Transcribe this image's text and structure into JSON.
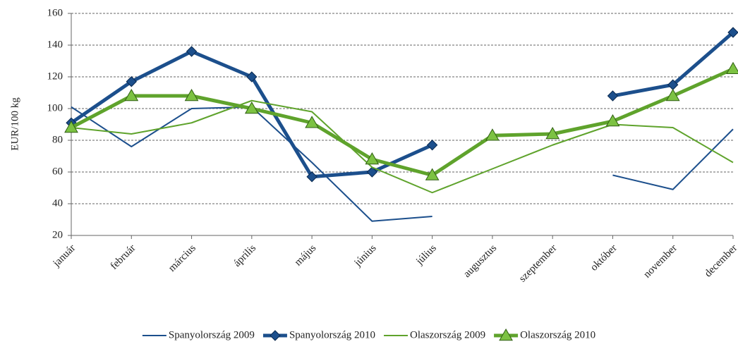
{
  "chart_data": {
    "type": "line",
    "y_label": "EUR/100 kg",
    "categories": [
      "január",
      "február",
      "március",
      "április",
      "május",
      "június",
      "július",
      "augusztus",
      "szeptember",
      "október",
      "november",
      "december"
    ],
    "series": [
      {
        "name": "Spanyolország 2009",
        "color": "#1c4f8c",
        "width": 2,
        "marker": "none",
        "values": [
          101,
          76,
          100,
          101,
          66,
          29,
          32,
          null,
          null,
          58,
          49,
          87
        ]
      },
      {
        "name": "Spanyolország 2010",
        "color": "#1c4f8c",
        "width": 5,
        "marker": "diamond",
        "values": [
          91,
          117,
          136,
          120,
          57,
          60,
          77,
          null,
          null,
          108,
          115,
          148
        ]
      },
      {
        "name": "Olaszország 2009",
        "color": "#5fa32c",
        "width": 2,
        "marker": "none",
        "values": [
          88,
          84,
          91,
          105,
          98,
          63,
          47,
          62,
          77,
          90,
          88,
          66
        ]
      },
      {
        "name": "Olaszország 2010",
        "color": "#5fa32c",
        "width": 5,
        "marker": "triangle",
        "values": [
          88,
          108,
          108,
          100,
          91,
          68,
          58,
          83,
          84,
          92,
          108,
          125
        ]
      }
    ],
    "ylim": [
      20,
      160
    ],
    "yticks": [
      20,
      40,
      60,
      80,
      100,
      120,
      140,
      160
    ],
    "grid": true,
    "legend": "bottom"
  }
}
